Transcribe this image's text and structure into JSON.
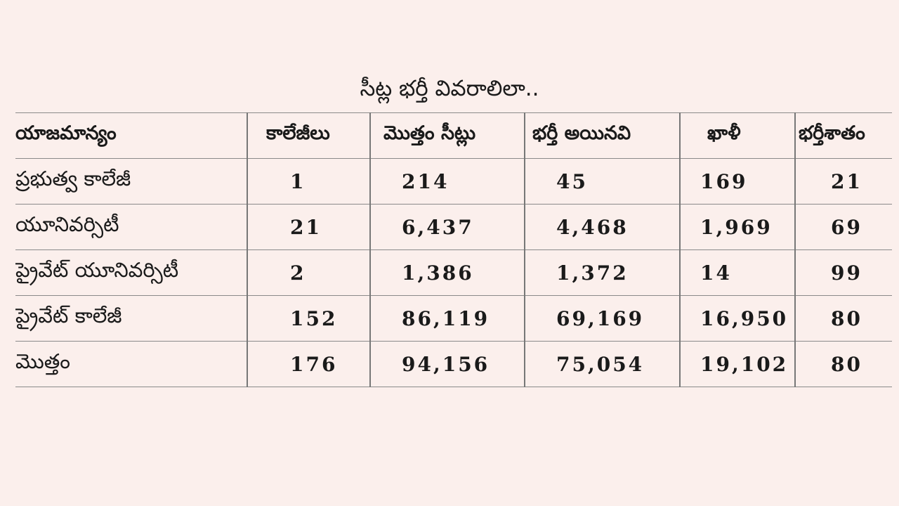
{
  "title": "సీట్ల భర్తీ వివరాలిలా..",
  "table": {
    "header": [
      "యాజమాన్యం",
      "కాలేజీలు",
      "మొత్తం సీట్లు",
      "భర్తీ అయినవి",
      "ఖాళీ",
      "భర్తీశాతం"
    ],
    "rows": [
      [
        "ప్రభుత్వ కాలేజీ",
        "1",
        "214",
        "45",
        "169",
        "21"
      ],
      [
        "యూనివర్సిటీ",
        "21",
        "6,437",
        "4,468",
        "1,969",
        "69"
      ],
      [
        "ప్రైవేట్ యూనివర్సిటీ",
        "2",
        "1,386",
        "1,372",
        "14",
        "99"
      ],
      [
        "ప్రైవేట్ కాలేజీ",
        "152",
        "86,119",
        "69,169",
        "16,950",
        "80"
      ],
      [
        "మొత్తం",
        "176",
        "94,156",
        "75,054",
        "19,102",
        "80"
      ]
    ]
  }
}
